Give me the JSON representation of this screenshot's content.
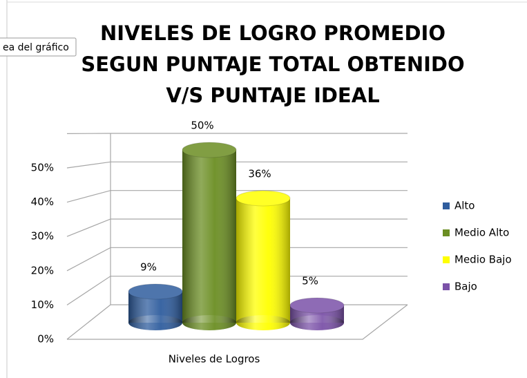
{
  "tooltip": "ea del gráfico",
  "chart_data": {
    "type": "bar3d",
    "title": [
      "NIVELES DE LOGRO PROMEDIO",
      "SEGUN PUNTAJE TOTAL OBTENIDO",
      "V/S PUNTAJE IDEAL"
    ],
    "categories": [
      "Niveles de Logros"
    ],
    "series": [
      {
        "name": "Alto",
        "color": "#2f5d9e",
        "values": [
          9
        ],
        "value_labels": [
          "9%"
        ]
      },
      {
        "name": "Medio Alto",
        "color": "#6b8e23",
        "values": [
          50
        ],
        "value_labels": [
          "50%"
        ]
      },
      {
        "name": "Medio Bajo",
        "color": "#ffff00",
        "values": [
          36
        ],
        "value_labels": [
          "36%"
        ]
      },
      {
        "name": "Bajo",
        "color": "#7b52a8",
        "values": [
          5
        ],
        "value_labels": [
          "5%"
        ]
      }
    ],
    "ylim": [
      0,
      60
    ],
    "yticks": [
      {
        "value": 0,
        "label": "0%"
      },
      {
        "value": 10,
        "label": "10%"
      },
      {
        "value": 20,
        "label": "20%"
      },
      {
        "value": 30,
        "label": "30%"
      },
      {
        "value": 40,
        "label": "40%"
      },
      {
        "value": 50,
        "label": "50%"
      }
    ],
    "grid": true,
    "legend": "right"
  }
}
